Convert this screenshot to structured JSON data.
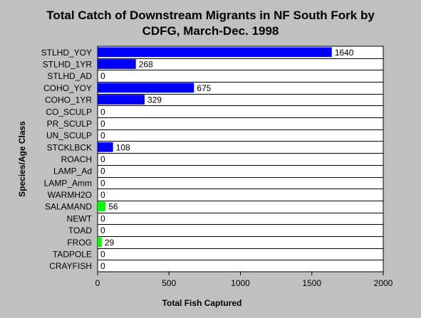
{
  "chart_data": {
    "type": "bar",
    "orientation": "horizontal",
    "title_lines": [
      "Total Catch of Downstream Migrants in NF South Fork by",
      "CDFG, March-Dec. 1998"
    ],
    "xlabel": "Total Fish Captured",
    "ylabel": "Species/Age Class",
    "xlim": [
      0,
      2000
    ],
    "xticks": [
      "0",
      "500",
      "1000",
      "1500",
      "2000"
    ],
    "grid": "horizontal",
    "legend": "none",
    "categories": [
      "STLHD_YOY",
      "STLHD_1YR",
      "STLHD_AD",
      "COHO_YOY",
      "COHO_1YR",
      "CO_SCULP",
      "PR_SCULP",
      "UN_SCULP",
      "STCKLBCK",
      "ROACH",
      "LAMP_Ad",
      "LAMP_Amm",
      "WARMH2O",
      "SALAMAND",
      "NEWT",
      "TOAD",
      "FROG",
      "TADPOLE",
      "CRAYFISH"
    ],
    "values": [
      1640,
      268,
      0,
      675,
      329,
      0,
      0,
      0,
      108,
      0,
      0,
      0,
      0,
      56,
      0,
      0,
      29,
      0,
      0
    ],
    "bar_colors": [
      "#0000ff",
      "#0000ff",
      "#0000ff",
      "#0000ff",
      "#0000ff",
      "#0000ff",
      "#0000ff",
      "#0000ff",
      "#0000ff",
      "#0000ff",
      "#0000ff",
      "#0000ff",
      "#0000ff",
      "#00ff00",
      "#0000ff",
      "#0000ff",
      "#00ff00",
      "#0000ff",
      "#0000ff"
    ],
    "plot_background": "#ffffff",
    "page_background": "#c0c0c0"
  }
}
